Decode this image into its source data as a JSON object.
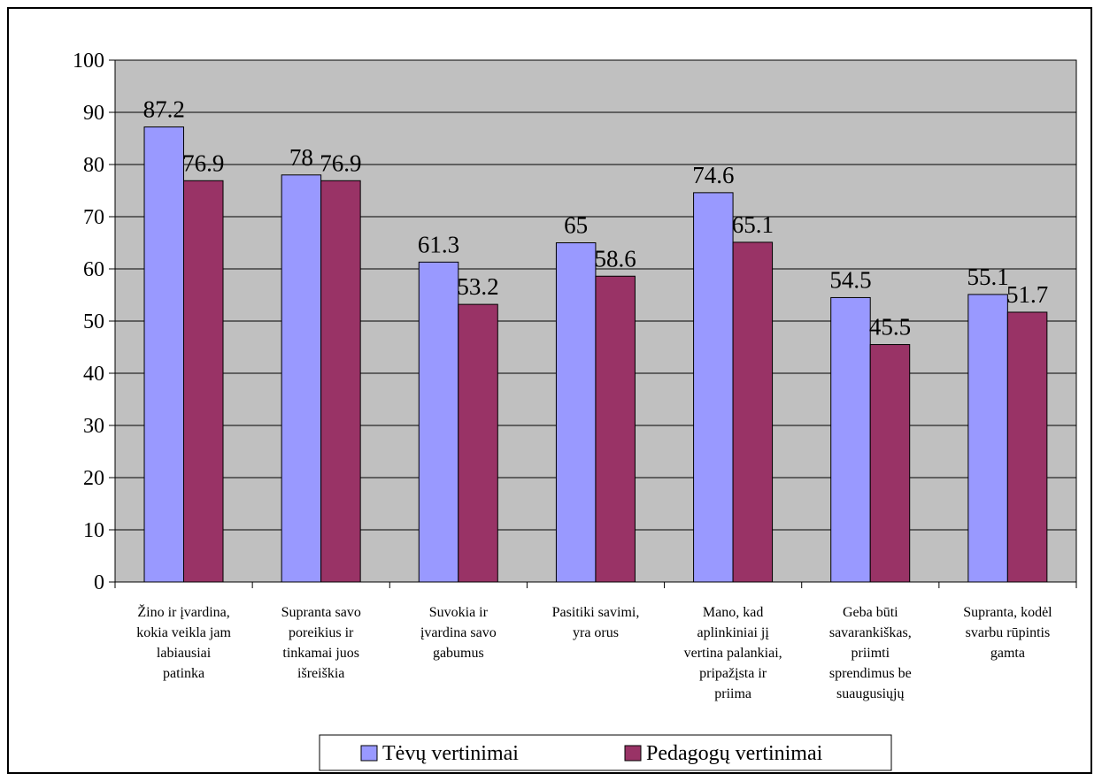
{
  "chart_data": {
    "type": "bar",
    "categories": [
      [
        "Žino ir įvardina,",
        "kokia veikla jam",
        "labiausiai",
        "patinka"
      ],
      [
        "Supranta savo",
        "poreikius ir",
        "tinkamai juos",
        "išreiškia"
      ],
      [
        "Suvokia ir",
        "įvardina savo",
        "gabumus"
      ],
      [
        "Pasitiki savimi,",
        "yra orus"
      ],
      [
        "Mano, kad",
        "aplinkiniai jį",
        "vertina palankiai,",
        "pripažįsta ir",
        "priima"
      ],
      [
        "Geba būti",
        "savarankiškas,",
        "priimti",
        "sprendimus be",
        "suaugusiųjų"
      ],
      [
        "Supranta, kodėl",
        "svarbu rūpintis",
        "gamta"
      ]
    ],
    "series": [
      {
        "name": "Tėvų vertinimai",
        "values": [
          87.2,
          78,
          61.3,
          65,
          74.6,
          54.5,
          55.1
        ],
        "labels": [
          "87.2",
          "78",
          "61.3",
          "65",
          "74.6",
          "54.5",
          "55.1"
        ],
        "color": "#9999ff"
      },
      {
        "name": "Pedagogų vertinimai",
        "values": [
          76.9,
          76.9,
          53.2,
          58.6,
          65.1,
          45.5,
          51.7
        ],
        "labels": [
          "76.9",
          "76.9",
          "53.2",
          "58.6",
          "65.1",
          "45.5",
          "51.7"
        ],
        "color": "#993366"
      }
    ],
    "ylim": [
      0,
      100
    ],
    "yticks": [
      "0",
      "10",
      "20",
      "30",
      "40",
      "50",
      "60",
      "70",
      "80",
      "90",
      "100"
    ],
    "grid": true,
    "plot_background": "#c0c0c0",
    "legend_position": "bottom"
  }
}
